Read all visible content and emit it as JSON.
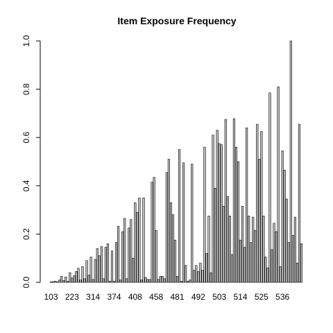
{
  "chart_data": {
    "type": "bar",
    "title": "Item Exposure Frequency",
    "xlabel": "",
    "ylabel": "",
    "ylim": [
      0,
      1.0
    ],
    "yticks": [
      "0.0",
      "0.2",
      "0.4",
      "0.6",
      "0.8",
      "1.0"
    ],
    "xtick_labels": [
      "103",
      "223",
      "314",
      "374",
      "408",
      "458",
      "481",
      "492",
      "503",
      "514",
      "525",
      "536"
    ],
    "grid": false,
    "legend": "none",
    "bar_color": "#bebebe",
    "values": [
      0.002,
      0.003,
      0.005,
      0.002,
      0.01,
      0.025,
      0.008,
      0.022,
      0.005,
      0.04,
      0.018,
      0.028,
      0.045,
      0.058,
      0.01,
      0.065,
      0.015,
      0.09,
      0.03,
      0.105,
      0.012,
      0.095,
      0.14,
      0.11,
      0.148,
      0.015,
      0.145,
      0.16,
      0.005,
      0.13,
      0.005,
      0.165,
      0.232,
      0.01,
      0.21,
      0.265,
      0.015,
      0.225,
      0.26,
      0.1,
      0.33,
      0.29,
      0.35,
      0.01,
      0.35,
      0.02,
      0.012,
      0.012,
      0.415,
      0.435,
      0.215,
      0.012,
      0.025,
      0.025,
      0.015,
      0.455,
      0.51,
      0.33,
      0.28,
      0.175,
      0.025,
      0.55,
      0.005,
      0.495,
      0.07,
      0.005,
      0.01,
      0.49,
      0.05,
      0.07,
      0.045,
      0.08,
      0.05,
      0.56,
      0.12,
      0.275,
      0.04,
      0.61,
      0.39,
      0.63,
      0.575,
      0.57,
      0.315,
      0.675,
      0.355,
      0.275,
      0.115,
      0.678,
      0.56,
      0.5,
      0.175,
      0.315,
      0.145,
      0.64,
      0.275,
      0.165,
      0.27,
      0.215,
      0.655,
      0.51,
      0.625,
      0.275,
      0.105,
      0.06,
      0.785,
      0.135,
      0.245,
      0.21,
      0.81,
      0.065,
      0.545,
      0.465,
      0.345,
      0.165,
      1.0,
      0.195,
      0.27,
      0.08,
      0.655,
      0.16
    ]
  }
}
